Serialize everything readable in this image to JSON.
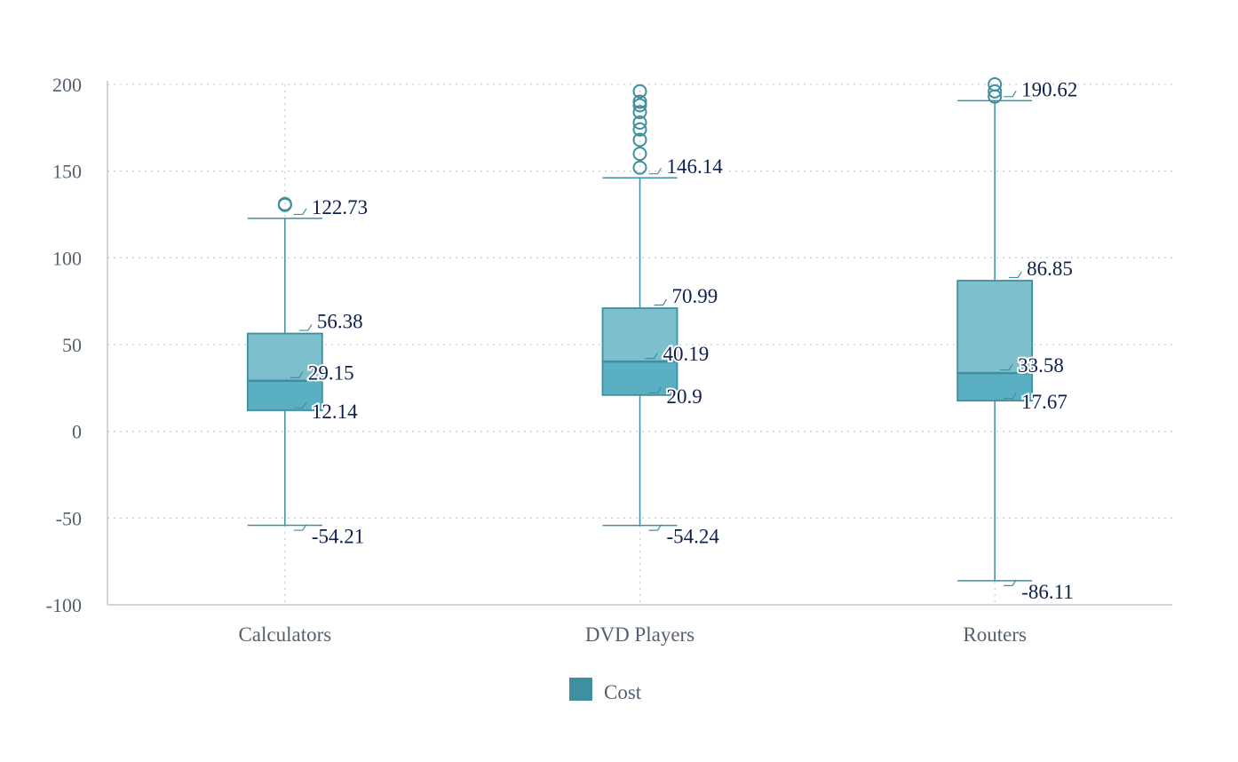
{
  "chart_data": {
    "type": "boxplot",
    "series_name": "Cost",
    "categories": [
      "Calculators",
      "DVD Players",
      "Routers"
    ],
    "boxes": [
      {
        "category": "Calculators",
        "min": -54.21,
        "q1": 12.14,
        "median": 29.15,
        "q3": 56.38,
        "max": 122.73,
        "outliers": [
          130.5,
          131
        ]
      },
      {
        "category": "DVD Players",
        "min": -54.24,
        "q1": 20.9,
        "median": 40.19,
        "q3": 70.99,
        "max": 146.14,
        "outliers": [
          152,
          160,
          168,
          174,
          178,
          184,
          188,
          190,
          196
        ]
      },
      {
        "category": "Routers",
        "min": -86.11,
        "q1": 17.67,
        "median": 33.58,
        "q3": 86.85,
        "max": 190.62,
        "outliers": [
          193,
          196,
          200
        ]
      }
    ],
    "yticks": [
      200,
      150,
      100,
      50,
      0,
      -50,
      -100
    ],
    "ylim": [
      -100,
      200
    ],
    "grid": true,
    "legend": {
      "position": "bottom",
      "label": "Cost"
    },
    "colors": {
      "box_upper": "#7dbfcd",
      "box_lower": "#5bafc3",
      "stroke": "#3e8f9f",
      "legend": "#3e8f9f",
      "grid": "#c9ced6",
      "label_text": "#0f1f4d"
    }
  }
}
